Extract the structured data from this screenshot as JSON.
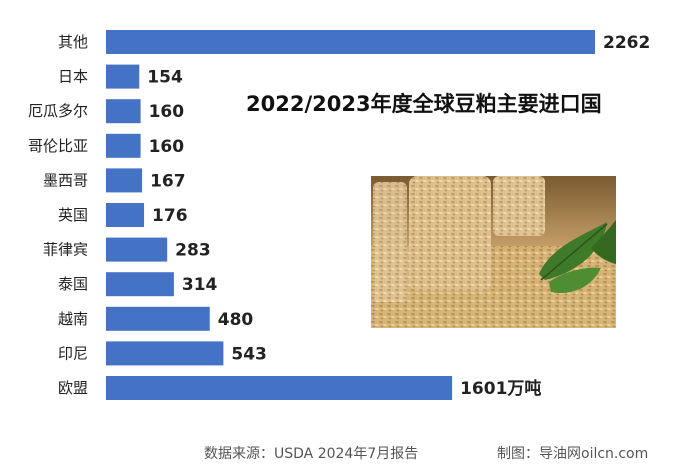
{
  "title": "2022/2023年度全球豆粕主要进口国",
  "unit": "万吨",
  "footer": {
    "source": "数据来源：USDA 2024年7月报告",
    "credit": "制图：导油网oilcn.com"
  },
  "colors": {
    "bar": "#4472C4"
  },
  "chart_data": {
    "type": "bar",
    "orientation": "horizontal",
    "categories": [
      "其他",
      "日本",
      "厄瓜多尔",
      "哥伦比亚",
      "墨西哥",
      "英国",
      "菲律宾",
      "泰国",
      "越南",
      "印尼",
      "欧盟"
    ],
    "values": [
      2262,
      154,
      160,
      160,
      167,
      176,
      283,
      314,
      480,
      543,
      1601
    ],
    "value_labels": [
      "2262",
      "154",
      "160",
      "160",
      "167",
      "176",
      "283",
      "314",
      "480",
      "543",
      "1601万吨"
    ],
    "title": "2022/2023年度全球豆粕主要进口国",
    "xlim": [
      0,
      2262
    ],
    "grid": false,
    "legend": "none"
  },
  "image": {
    "description_icon": "soybean-meal-photo"
  }
}
